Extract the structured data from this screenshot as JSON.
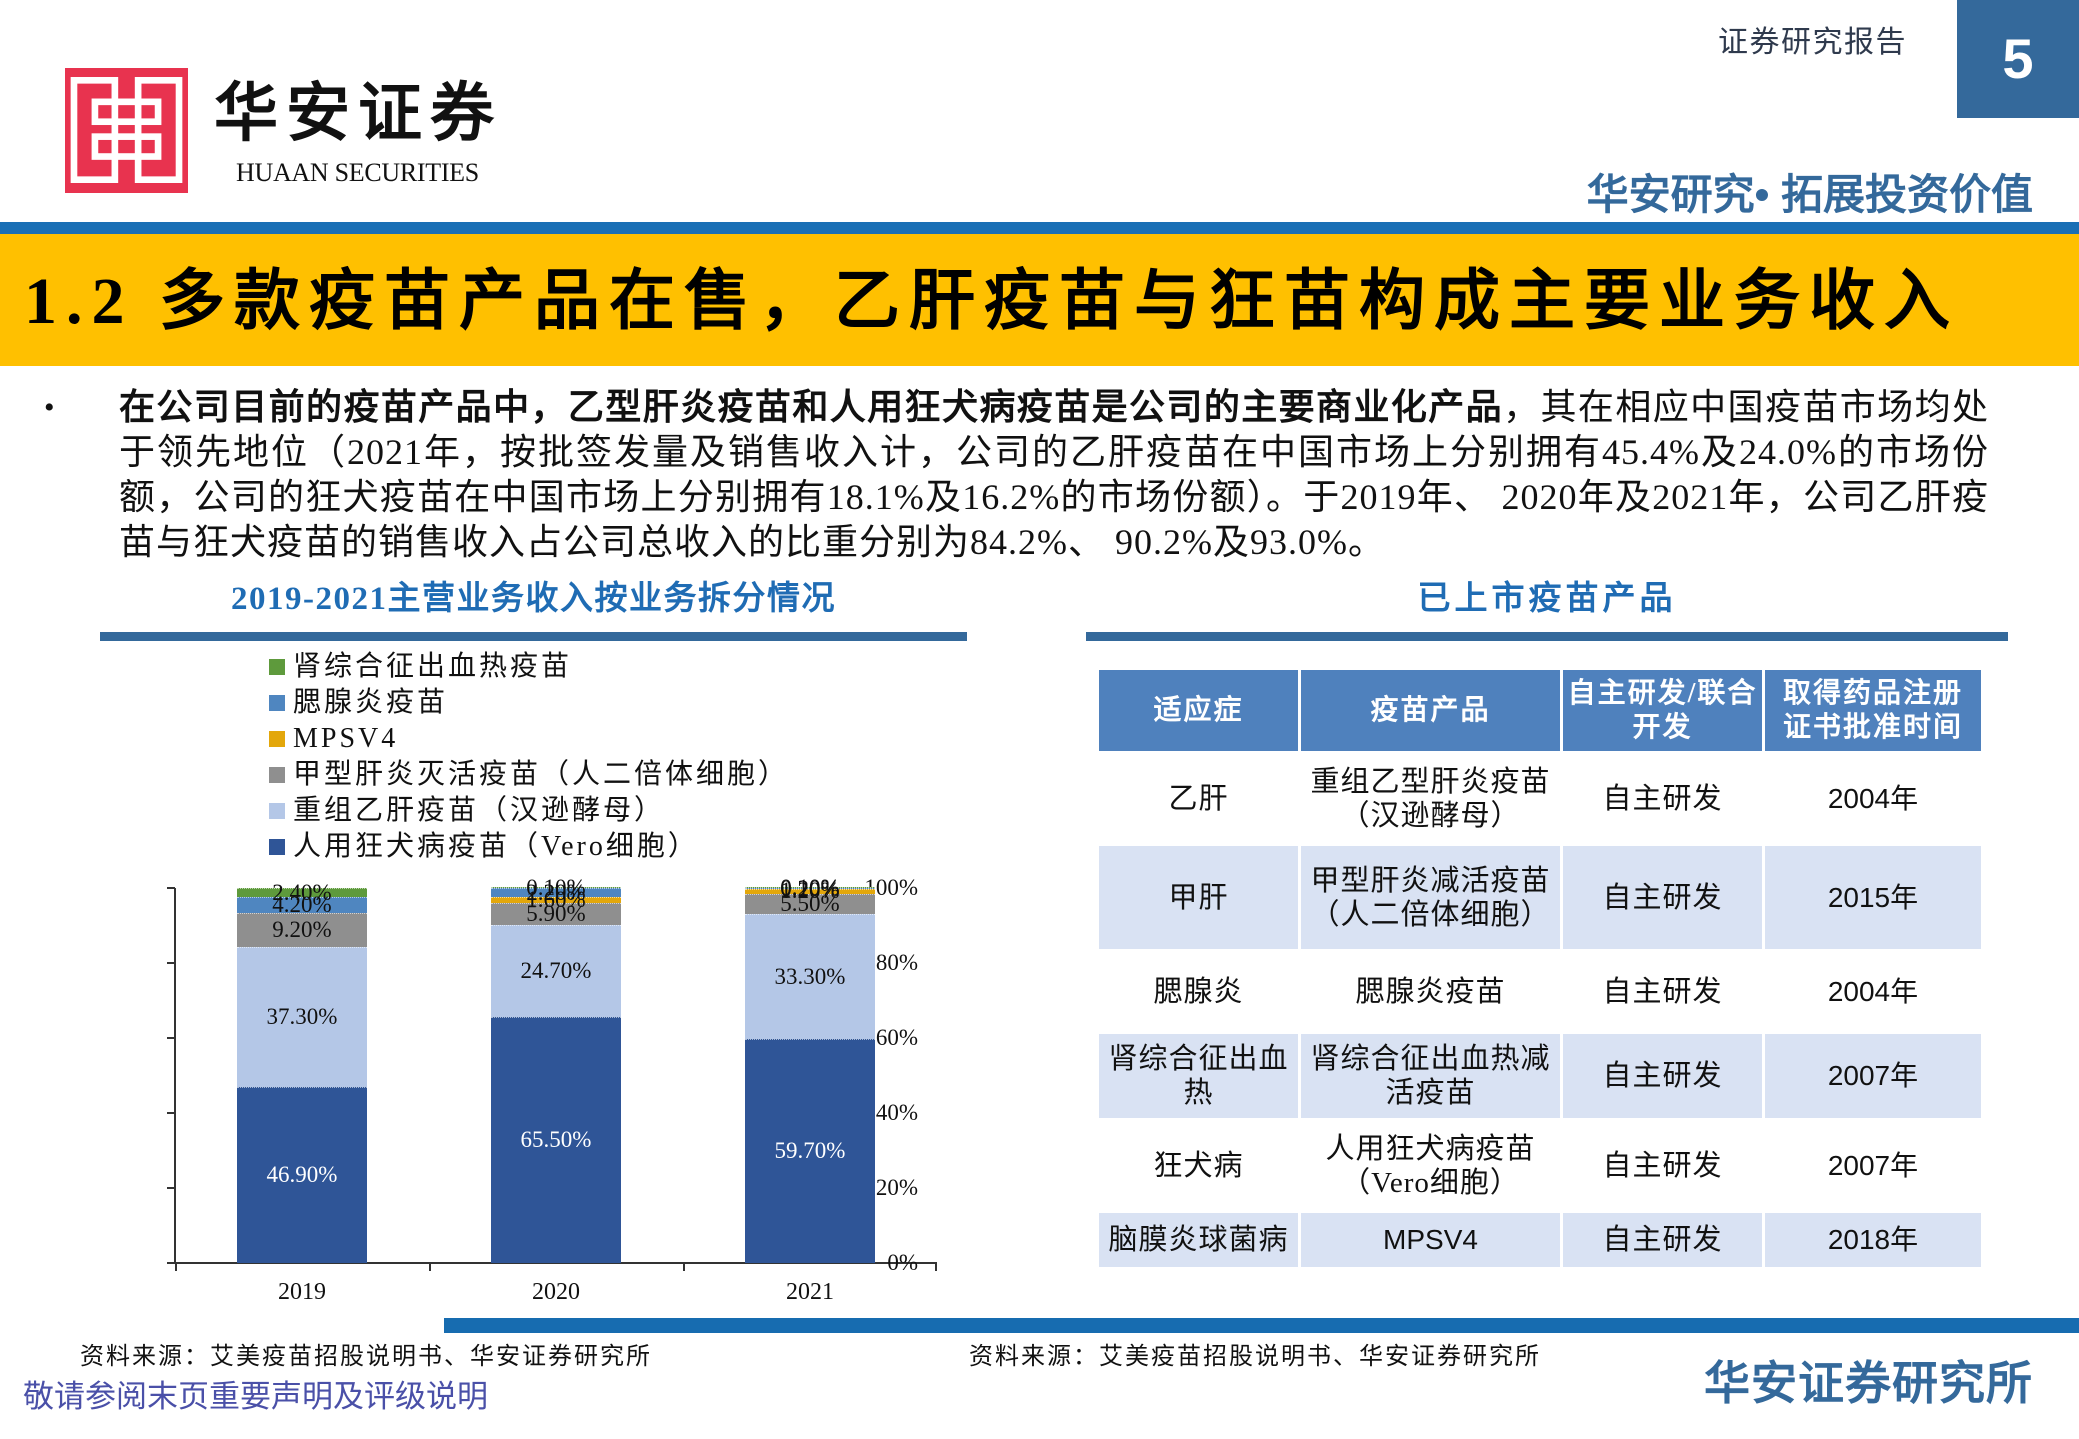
{
  "header": {
    "logo_icon": "huaan-knot-logo-icon",
    "brand_cn": "华安证券",
    "brand_en": "HUAAN SECURITIES",
    "report_type": "证券研究报告",
    "page_number": "5",
    "slogan": "华安研究• 拓展投资价值"
  },
  "section_title": "1.2 多款疫苗产品在售，乙肝疫苗与狂苗构成主要业务收入",
  "summary": {
    "bullet": "•",
    "bold_lead": "在公司目前的疫苗产品中，乙型肝炎疫苗和人用狂犬病疫苗是公司的主要商业化产品",
    "body": "，其在相应中国疫苗市场均处于领先地位（2021年，按批签发量及销售收入计，公司的乙肝疫苗在中国市场上分别拥有45.4%及24.0%的市场份额，公司的狂犬疫苗在中国市场上分别拥有18.1%及16.2%的市场份额）。于2019年、 2020年及2021年，公司乙肝疫苗与狂犬疫苗的销售收入占公司总收入的比重分别为84.2%、 90.2%及93.0%。"
  },
  "left_panel": {
    "title": "2019-2021主营业务收入按业务拆分情况",
    "source": "资料来源：艾美疫苗招股说明书、华安证券研究所"
  },
  "right_panel": {
    "title": "已上市疫苗产品",
    "source": "资料来源：艾美疫苗招股说明书、华安证券研究所",
    "table": {
      "headers": [
        "适应症",
        "疫苗产品",
        "自主研发/联合开发",
        "取得药品注册证书批准时间"
      ],
      "rows": [
        [
          "乙肝",
          "重组乙型肝炎疫苗（汉逊酵母）",
          "自主研发",
          "2004年"
        ],
        [
          "甲肝",
          "甲型肝炎减活疫苗（人二倍体细胞）",
          "自主研发",
          "2015年"
        ],
        [
          "腮腺炎",
          "腮腺炎疫苗",
          "自主研发",
          "2004年"
        ],
        [
          "肾综合征出血热",
          "肾综合征出血热减活疫苗",
          "自主研发",
          "2007年"
        ],
        [
          "狂犬病",
          "人用狂犬病疫苗（Vero细胞）",
          "自主研发",
          "2007年"
        ],
        [
          "脑膜炎球菌病",
          "MPSV4",
          "自主研发",
          "2018年"
        ]
      ]
    }
  },
  "footer": {
    "disclaimer": "敬请参阅末页重要声明及评级说明",
    "institute": "华安证券研究所"
  },
  "colors": {
    "brand_blue": "#34699b",
    "rule_blue": "#1a6fb5",
    "title_band": "#ffc000",
    "logo_red": "#e8334f",
    "table_header": "#4f81bd",
    "table_stripe": "#d9e2f3",
    "heading_blue": "#1f6cb4",
    "disclaimer": "#4a50a8"
  },
  "chart_data": {
    "type": "bar",
    "stacked": true,
    "title": "2019-2021主营业务收入按业务拆分情况",
    "xlabel": "",
    "ylabel": "",
    "categories": [
      "2019",
      "2020",
      "2021"
    ],
    "ylim": [
      0,
      100
    ],
    "y_ticks": [
      0,
      20,
      40,
      60,
      80,
      100
    ],
    "y_tick_labels": [
      "0%",
      "20%",
      "40%",
      "60%",
      "80%",
      "100%"
    ],
    "grid": false,
    "legend_position": "top-left",
    "series": [
      {
        "name": "人用狂犬病疫苗（Vero细胞）",
        "color": "#2f5597",
        "label_color": "#ffffff",
        "values": [
          46.9,
          65.5,
          59.7
        ],
        "labels": [
          "46.90%",
          "65.50%",
          "59.70%"
        ]
      },
      {
        "name": "重组乙肝疫苗（汉逊酵母）",
        "color": "#b4c7e7",
        "label_color": "#111111",
        "values": [
          37.3,
          24.7,
          33.3
        ],
        "labels": [
          "37.30%",
          "24.70%",
          "33.30%"
        ]
      },
      {
        "name": "甲型肝炎灭活疫苗（人二倍体细胞）",
        "color": "#8f8f8f",
        "label_color": "#111111",
        "values": [
          9.2,
          5.9,
          5.5
        ],
        "labels": [
          "9.20%",
          "5.90%",
          "5.50%"
        ]
      },
      {
        "name": "MPSV4",
        "color": "#e3a70b",
        "label_color": "#111111",
        "values": [
          0,
          1.6,
          1.2
        ],
        "labels": [
          "",
          "1.60%",
          "1.20%"
        ]
      },
      {
        "name": "腮腺炎疫苗",
        "color": "#4f86c0",
        "label_color": "#111111",
        "values": [
          4.2,
          2.2,
          0.2
        ],
        "labels": [
          "4.20%",
          "2.20%",
          "0.20%"
        ]
      },
      {
        "name": "肾综合征出血热疫苗",
        "color": "#5e9a3c",
        "label_color": "#111111",
        "values": [
          2.4,
          0.1,
          0.1
        ],
        "labels": [
          "2.40%",
          "0.10%",
          "0.10%"
        ]
      }
    ]
  }
}
